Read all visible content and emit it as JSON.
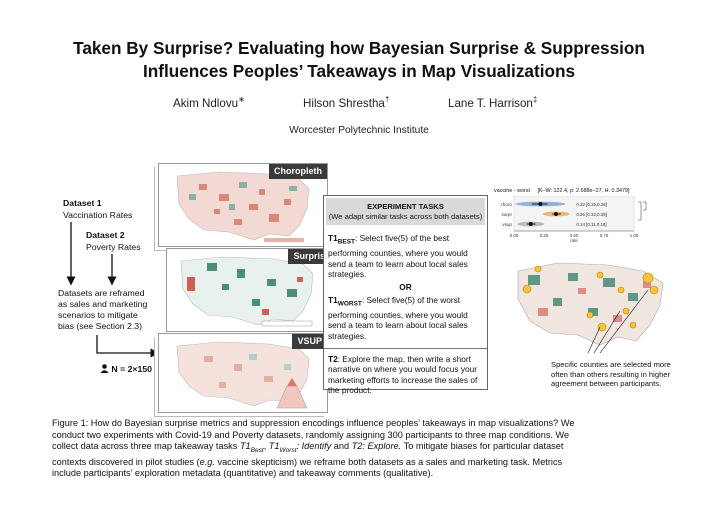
{
  "title_line1": "Taken By Surprise? Evaluating how Bayesian Surprise & Suppression",
  "title_line2": "Influences Peoples’ Takeaways in Map Visualizations",
  "authors": [
    {
      "name": "Akim Ndlovu",
      "mark": "∗"
    },
    {
      "name": "Hilson Shrestha",
      "mark": "†"
    },
    {
      "name": "Lane T. Harrison",
      "mark": "‡"
    }
  ],
  "affiliation": "Worcester Polytechnic Institute",
  "left_panel": {
    "dataset1_title": "Dataset 1",
    "dataset1_name": "Vaccination Rates",
    "dataset2_title": "Dataset 2",
    "dataset2_name": "Poverty Rates",
    "reframe_text_1": "Datasets are reframed",
    "reframe_text_2": "as sales and marketing",
    "reframe_text_3": "scenarios to mitigate",
    "reframe_text_4": "bias (see Section 2.3)",
    "participants": "N = 2×150"
  },
  "maps": {
    "choropleth_label": "Choropleth",
    "surprise_label": "Surprise",
    "vsup_label": "VSUP"
  },
  "tasks": {
    "header_line1": "EXPERIMENT TASKS",
    "header_line2": "(We adapt similar tasks across both datasets)",
    "t1best_prefix": "T1",
    "t1best_sub": "BEST",
    "t1best_text": ": Select five(5) of the best performing counties, where you would send a team to learn about local sales strategies.",
    "or": "OR",
    "t1worst_prefix": "T1",
    "t1worst_sub": "WORST",
    "t1worst_text": ": Select five(5) of the worst performing counties, where you would send a team to learn about local sales strategies.",
    "t2_prefix": "T2",
    "t2_text": ": Explore the map, then write a short narrative on where you would focus your marketing efforts to increase the sales of the product."
  },
  "chart_data": {
    "type": "scatter",
    "title": "vaccine - worst",
    "stats": "[K–W: 122.4, p: 2.688e−27, H: 0.3479]",
    "xlabel": "rate",
    "xticks": [
      "0.00",
      "0.25",
      "0.50",
      "0.75",
      "1.00"
    ],
    "xlim": [
      0,
      1
    ],
    "categories": [
      "choro",
      "surpr",
      "vsup"
    ],
    "values": [
      0.22,
      0.35,
      0.14
    ],
    "ci_low": [
      0.15,
      0.32,
      0.11
    ],
    "ci_high": [
      0.28,
      0.39,
      0.18
    ],
    "annotations": [
      "0.22 [0.15,0.28]",
      "0.35 [0.32,0.39]",
      "0.14 [0.11,0.18]"
    ],
    "colors": [
      "#3b7fc4",
      "#e58a00",
      "#888888"
    ]
  },
  "right_note": {
    "line1": "Specific counties are selected more",
    "line2": "often than others resulting in higher",
    "line3": "agreement between participants."
  },
  "caption": {
    "line1": "Figure 1: How do Bayesian surprise metrics and suppression encodings influence peoples’ takeaways in map visualizations? We",
    "line2": "conduct two experiments with Covid-19 and Poverty datasets, randomly assigning 300 participants to three map conditions. We",
    "line3a": "collect data across three map takeaway tasks ",
    "line3b": "T1",
    "line3c": "Best",
    "line3d": ", ",
    "line3e": "T1",
    "line3f": "Worst",
    "line3g": ": Identify",
    "line3h": " and ",
    "line3i": "T2: Explore.",
    "line3j": " To mitigate biases for particular dataset",
    "line4a": "contexts discovered in pilot studies (",
    "line4b": "e.g.",
    "line4c": " vaccine skepticism) we reframe both datasets as a sales and marketing task. Metrics",
    "line5": "include participants’ exploration metadata (quantitative) and takeaway comments (qualitative)."
  }
}
